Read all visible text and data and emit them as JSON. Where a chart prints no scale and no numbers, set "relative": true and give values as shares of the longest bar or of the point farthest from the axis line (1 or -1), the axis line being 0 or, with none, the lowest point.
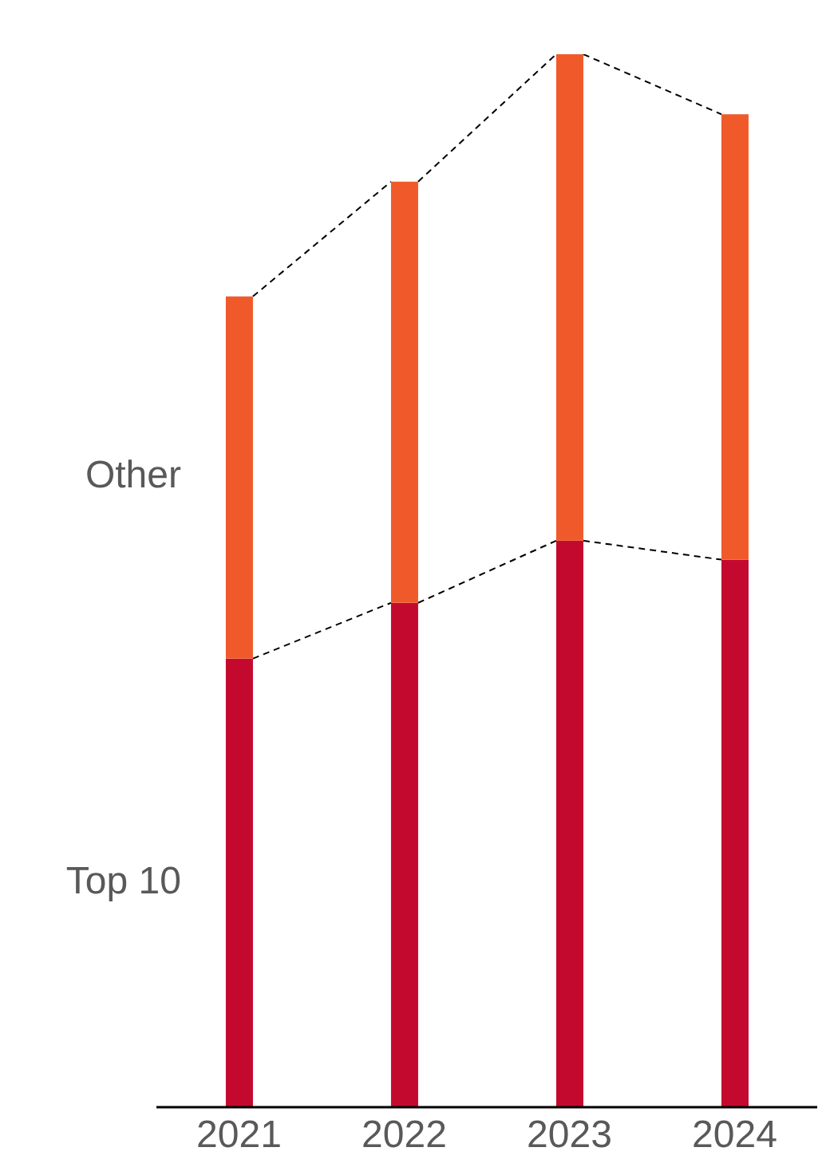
{
  "chart_data": {
    "type": "bar",
    "stacked": true,
    "relative": true,
    "categories": [
      "2021",
      "2022",
      "2023",
      "2024"
    ],
    "series": [
      {
        "name": "Top 10",
        "color": "#c4092f",
        "values": [
          0.426,
          0.479,
          0.538,
          0.52
        ]
      },
      {
        "name": "Other",
        "color": "#f05a2a",
        "values": [
          0.344,
          0.4,
          0.462,
          0.423
        ]
      }
    ]
  }
}
